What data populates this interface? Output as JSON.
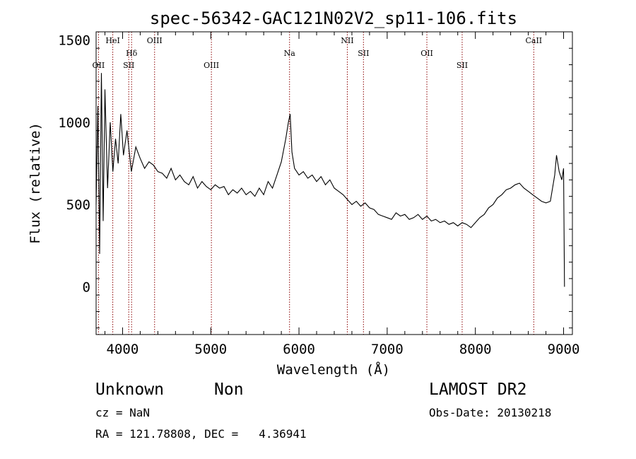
{
  "chart_data": {
    "type": "line",
    "title": "spec-56342-GAC121N02V2_sp11-106.fits",
    "xlabel": "Wavelength (Å)",
    "ylabel": "Flux (relative)",
    "xlim": [
      3700,
      9100
    ],
    "ylim": [
      -290,
      1550
    ],
    "xticks": [
      4000,
      5000,
      6000,
      7000,
      8000,
      9000
    ],
    "yticks": [
      0,
      500,
      1000,
      1500
    ],
    "line_color": "#000000",
    "marker_color": "#8b0000",
    "grid": false,
    "series": [
      {
        "x": [
          3700,
          3720,
          3740,
          3760,
          3780,
          3800,
          3830,
          3860,
          3890,
          3920,
          3950,
          3980,
          4010,
          4050,
          4100,
          4150,
          4200,
          4250,
          4300,
          4350,
          4400,
          4450,
          4500,
          4550,
          4600,
          4650,
          4700,
          4750,
          4800,
          4850,
          4900,
          4950,
          5000,
          5050,
          5100,
          5150,
          5200,
          5250,
          5300,
          5350,
          5400,
          5450,
          5500,
          5550,
          5600,
          5650,
          5700,
          5750,
          5800,
          5850,
          5880,
          5900,
          5920,
          5950,
          6000,
          6050,
          6100,
          6150,
          6200,
          6250,
          6300,
          6350,
          6400,
          6450,
          6500,
          6550,
          6600,
          6650,
          6700,
          6750,
          6800,
          6850,
          6900,
          6950,
          7000,
          7050,
          7100,
          7150,
          7200,
          7250,
          7300,
          7350,
          7400,
          7450,
          7500,
          7550,
          7600,
          7650,
          7700,
          7750,
          7800,
          7850,
          7900,
          7950,
          8000,
          8050,
          8100,
          8150,
          8200,
          8250,
          8300,
          8350,
          8400,
          8450,
          8500,
          8550,
          8600,
          8650,
          8700,
          8750,
          8800,
          8850,
          8900,
          8920,
          8950,
          8980,
          9000,
          9010
        ],
        "y": [
          500,
          1100,
          200,
          1300,
          400,
          1200,
          600,
          1000,
          700,
          900,
          750,
          1050,
          800,
          950,
          700,
          850,
          780,
          720,
          760,
          740,
          700,
          690,
          660,
          720,
          650,
          680,
          640,
          620,
          670,
          600,
          640,
          610,
          590,
          620,
          600,
          610,
          560,
          590,
          570,
          600,
          560,
          580,
          550,
          600,
          560,
          640,
          600,
          680,
          760,
          900,
          1000,
          1050,
          820,
          720,
          680,
          700,
          660,
          680,
          640,
          670,
          620,
          650,
          600,
          580,
          560,
          530,
          500,
          520,
          490,
          510,
          480,
          470,
          440,
          430,
          420,
          410,
          450,
          430,
          440,
          410,
          420,
          440,
          410,
          430,
          400,
          410,
          390,
          400,
          380,
          390,
          370,
          390,
          380,
          360,
          390,
          420,
          440,
          480,
          500,
          540,
          560,
          590,
          600,
          620,
          630,
          600,
          580,
          560,
          540,
          520,
          510,
          520,
          680,
          800,
          700,
          650,
          720,
          0
        ]
      }
    ],
    "line_markers": [
      {
        "label": "OII",
        "x": 3727,
        "row": 3
      },
      {
        "label": "HeI",
        "x": 3889,
        "row": 1
      },
      {
        "label": "Hδ",
        "x": 4102,
        "row": 2
      },
      {
        "label": "SII",
        "x": 4070,
        "row": 3
      },
      {
        "label": "OIII",
        "x": 4363,
        "row": 1
      },
      {
        "label": "OIII",
        "x": 5007,
        "row": 3
      },
      {
        "label": "Na",
        "x": 5893,
        "row": 2
      },
      {
        "label": "NII",
        "x": 6548,
        "row": 1
      },
      {
        "label": "SII",
        "x": 6731,
        "row": 2
      },
      {
        "label": "OII",
        "x": 7450,
        "row": 2
      },
      {
        "label": "SII",
        "x": 7850,
        "row": 3
      },
      {
        "label": "CaII",
        "x": 8662,
        "row": 1
      }
    ]
  },
  "info": {
    "class_label": "Unknown",
    "subclass_label": "Non",
    "survey": "LAMOST DR2",
    "cz": "cz = NaN",
    "obs_date": "Obs-Date: 20130218",
    "coords": "RA = 121.78808, DEC =   4.36941"
  }
}
